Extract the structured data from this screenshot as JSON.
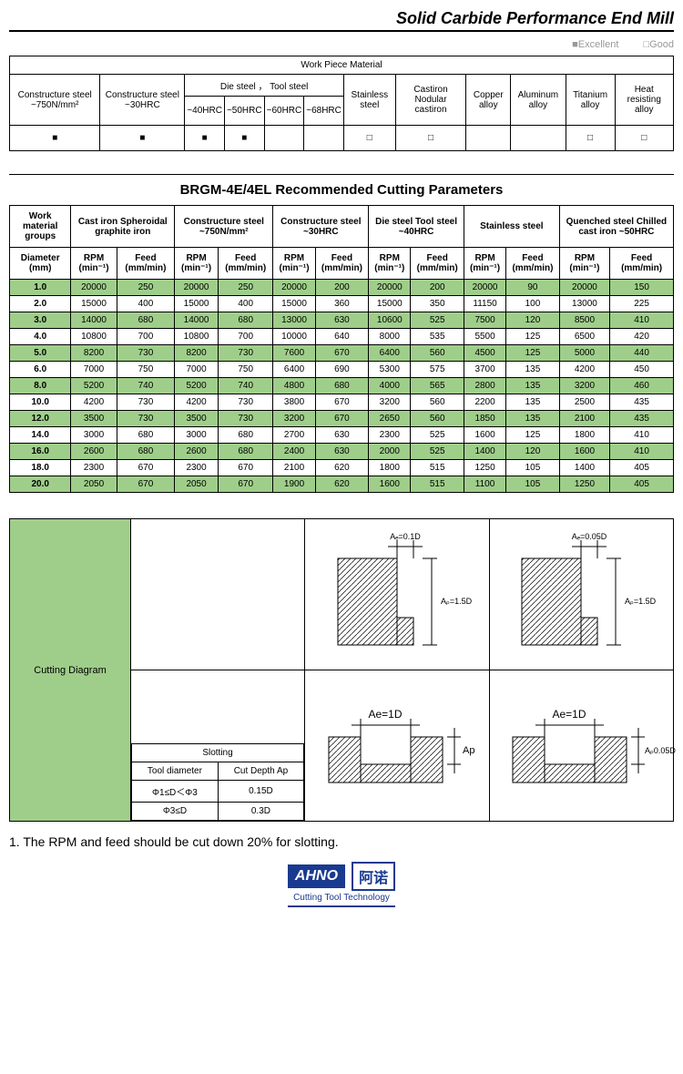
{
  "page_title": "Solid Carbide Performance End Mill",
  "legend": {
    "excellent": "■Excellent",
    "good": "□Good"
  },
  "wpm": {
    "title": "Work Piece Material",
    "die_tool_header": "Die steel ， Tool steel",
    "columns": [
      "Constructure steel ~750N/mm²",
      "Constructure steel ~30HRC",
      "~40HRC",
      "~50HRC",
      "~60HRC",
      "~68HRC",
      "Stainless steel",
      "Castiron Nodular castiron",
      "Copper alloy",
      "Aluminum alloy",
      "Titanium alloy",
      "Heat resisting alloy"
    ],
    "marks": [
      "■",
      "■",
      "■",
      "■",
      "",
      "",
      "□",
      "□",
      "",
      "",
      "□",
      "□"
    ]
  },
  "params": {
    "title": "BRGM-4E/4EL    Recommended Cutting Parameters",
    "group_headers": [
      "Work material groups",
      "Cast iron Spheroidal graphite iron",
      "Constructure steel ~750N/mm²",
      "Constructure steel ~30HRC",
      "Die steel Tool steel ~40HRC",
      "Stainless steel",
      "Quenched steel Chilled cast iron ~50HRC"
    ],
    "sub_headers": [
      "Diameter (mm)",
      "RPM (min⁻¹)",
      "Feed (mm/min)"
    ],
    "rows": [
      {
        "d": "1.0",
        "v": [
          "20000",
          "250",
          "20000",
          "250",
          "20000",
          "200",
          "20000",
          "200",
          "20000",
          "90",
          "20000",
          "150"
        ]
      },
      {
        "d": "2.0",
        "v": [
          "15000",
          "400",
          "15000",
          "400",
          "15000",
          "360",
          "15000",
          "350",
          "11150",
          "100",
          "13000",
          "225"
        ]
      },
      {
        "d": "3.0",
        "v": [
          "14000",
          "680",
          "14000",
          "680",
          "13000",
          "630",
          "10600",
          "525",
          "7500",
          "120",
          "8500",
          "410"
        ]
      },
      {
        "d": "4.0",
        "v": [
          "10800",
          "700",
          "10800",
          "700",
          "10000",
          "640",
          "8000",
          "535",
          "5500",
          "125",
          "6500",
          "420"
        ]
      },
      {
        "d": "5.0",
        "v": [
          "8200",
          "730",
          "8200",
          "730",
          "7600",
          "670",
          "6400",
          "560",
          "4500",
          "125",
          "5000",
          "440"
        ]
      },
      {
        "d": "6.0",
        "v": [
          "7000",
          "750",
          "7000",
          "750",
          "6400",
          "690",
          "5300",
          "575",
          "3700",
          "135",
          "4200",
          "450"
        ]
      },
      {
        "d": "8.0",
        "v": [
          "5200",
          "740",
          "5200",
          "740",
          "4800",
          "680",
          "4000",
          "565",
          "2800",
          "135",
          "3200",
          "460"
        ]
      },
      {
        "d": "10.0",
        "v": [
          "4200",
          "730",
          "4200",
          "730",
          "3800",
          "670",
          "3200",
          "560",
          "2200",
          "135",
          "2500",
          "435"
        ]
      },
      {
        "d": "12.0",
        "v": [
          "3500",
          "730",
          "3500",
          "730",
          "3200",
          "670",
          "2650",
          "560",
          "1850",
          "135",
          "2100",
          "435"
        ]
      },
      {
        "d": "14.0",
        "v": [
          "3000",
          "680",
          "3000",
          "680",
          "2700",
          "630",
          "2300",
          "525",
          "1600",
          "125",
          "1800",
          "410"
        ]
      },
      {
        "d": "16.0",
        "v": [
          "2600",
          "680",
          "2600",
          "680",
          "2400",
          "630",
          "2000",
          "525",
          "1400",
          "120",
          "1600",
          "410"
        ]
      },
      {
        "d": "18.0",
        "v": [
          "2300",
          "670",
          "2300",
          "670",
          "2100",
          "620",
          "1800",
          "515",
          "1250",
          "105",
          "1400",
          "405"
        ]
      },
      {
        "d": "20.0",
        "v": [
          "2050",
          "670",
          "2050",
          "670",
          "1900",
          "620",
          "1600",
          "515",
          "1100",
          "105",
          "1250",
          "405"
        ]
      }
    ],
    "row_colors": {
      "odd": "#9fce8a",
      "even": "#ffffff"
    }
  },
  "diagram": {
    "label": "Cutting Diagram",
    "ae_01d": "Aₑ=0.1D",
    "ap_15d": "Aₚ=1.5D",
    "ae_005d": "Aₑ=0.05D",
    "ae_1d": "Ae=1D",
    "ap_label": "Ap",
    "ap_005d": "Aₚ0.05D",
    "slotting_title": "Slotting",
    "slot_h1": "Tool diameter",
    "slot_h2": "Cut Depth Ap",
    "slot_r1c1": "Φ1≤D＜Φ3",
    "slot_r1c2": "0.15D",
    "slot_r2c1": "Φ3≤D",
    "slot_r2c2": "0.3D"
  },
  "footnote": "1.  The RPM and feed should be cut down 20% for slotting.",
  "footer": {
    "brand": "AHNO",
    "cn": "阿诺",
    "sub": "Cutting Tool Technology"
  }
}
